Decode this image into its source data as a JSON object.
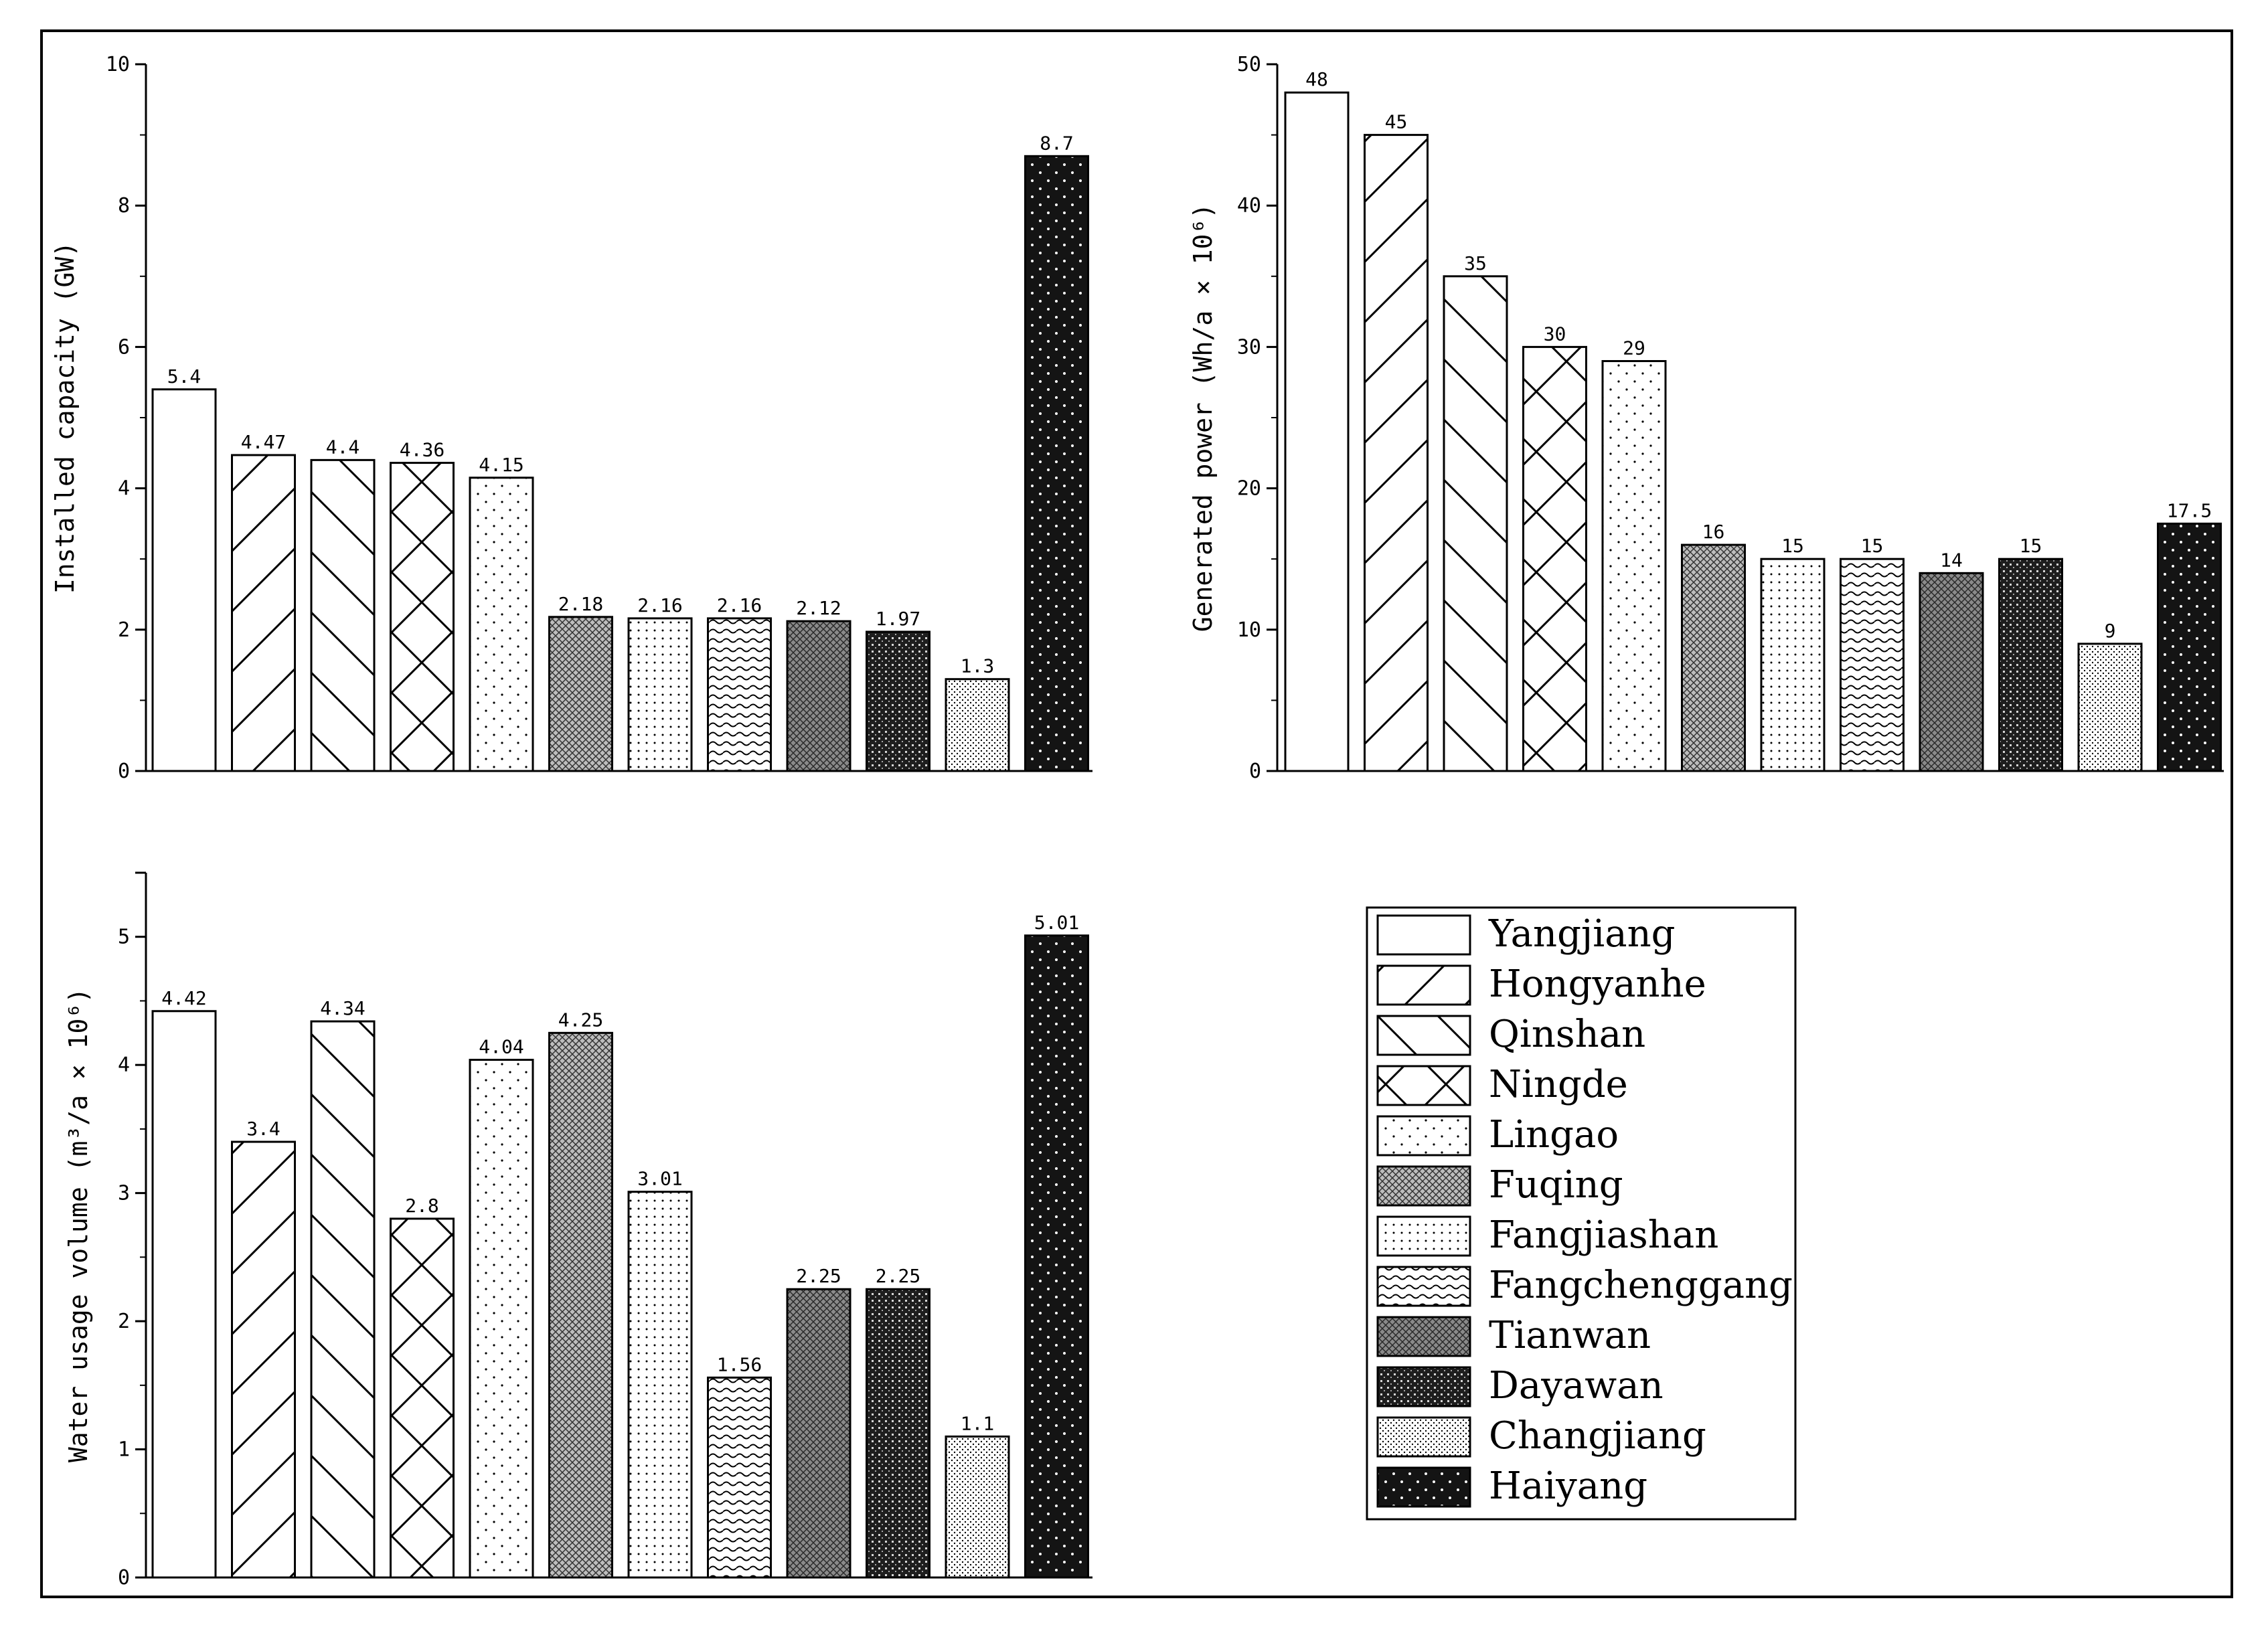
{
  "legend": {
    "items": [
      {
        "name": "Yangjiang",
        "pattern": "blank"
      },
      {
        "name": "Hongyanhe",
        "pattern": "fwd-diag"
      },
      {
        "name": "Qinshan",
        "pattern": "back-diag"
      },
      {
        "name": "Ningde",
        "pattern": "cross-diag"
      },
      {
        "name": "Lingao",
        "pattern": "sparse-dots"
      },
      {
        "name": "Fuqing",
        "pattern": "dense-cross"
      },
      {
        "name": "Fangjiashan",
        "pattern": "grid-dots"
      },
      {
        "name": "Fangchenggang",
        "pattern": "waves"
      },
      {
        "name": "Tianwan",
        "pattern": "gray-cross"
      },
      {
        "name": "Dayawan",
        "pattern": "dark-check"
      },
      {
        "name": "Changjiang",
        "pattern": "fine-dots"
      },
      {
        "name": "Haiyang",
        "pattern": "black-dots"
      }
    ]
  },
  "chart_data": [
    {
      "type": "bar",
      "ylabel": "Installed capacity (GW)",
      "ylim": [
        0,
        10
      ],
      "yticks": [
        "0",
        "2",
        "4",
        "6",
        "8",
        "10"
      ],
      "categories": [
        "Yangjiang",
        "Hongyanhe",
        "Qinshan",
        "Ningde",
        "Lingao",
        "Fuqing",
        "Fangjiashan",
        "Fangchenggang",
        "Tianwan",
        "Dayawan",
        "Changjiang",
        "Haiyang"
      ],
      "values": [
        5.4,
        4.47,
        4.4,
        4.36,
        4.15,
        2.18,
        2.16,
        2.16,
        2.12,
        1.97,
        1.3,
        8.7
      ],
      "labels": [
        "5.4",
        "4.47",
        "4.4",
        "4.36",
        "4.15",
        "2.18",
        "2.16",
        "2.16",
        "2.12",
        "1.97",
        "1.3",
        "8.7"
      ]
    },
    {
      "type": "bar",
      "ylabel": "Generated power (Wh/a × 10⁶)",
      "ylim": [
        0,
        50
      ],
      "yticks": [
        "0",
        "10",
        "20",
        "30",
        "40",
        "50"
      ],
      "categories": [
        "Yangjiang",
        "Hongyanhe",
        "Qinshan",
        "Ningde",
        "Lingao",
        "Fuqing",
        "Fangjiashan",
        "Fangchenggang",
        "Tianwan",
        "Dayawan",
        "Changjiang",
        "Haiyang"
      ],
      "values": [
        48,
        45,
        35,
        30,
        29,
        16,
        15,
        15,
        14,
        15,
        9,
        17.5
      ],
      "labels": [
        "48",
        "45",
        "35",
        "30",
        "29",
        "16",
        "15",
        "15",
        "14",
        "15",
        "9",
        "17.5"
      ]
    },
    {
      "type": "bar",
      "ylabel": "Water usage volume (m³/a × 10⁶)",
      "ylim": [
        0,
        5.5
      ],
      "yticks": [
        "0",
        "1",
        "2",
        "3",
        "4",
        "5"
      ],
      "categories": [
        "Yangjiang",
        "Hongyanhe",
        "Qinshan",
        "Ningde",
        "Lingao",
        "Fuqing",
        "Fangjiashan",
        "Fangchenggang",
        "Tianwan",
        "Dayawan",
        "Changjiang",
        "Haiyang"
      ],
      "values": [
        4.42,
        3.4,
        4.34,
        2.8,
        4.04,
        4.25,
        3.01,
        1.56,
        2.25,
        2.25,
        1.1,
        5.01
      ],
      "labels": [
        "4.42",
        "3.4",
        "4.34",
        "2.8",
        "4.04",
        "4.25",
        "3.01",
        "1.56",
        "2.25",
        "2.25",
        "1.1",
        "5.01"
      ]
    }
  ]
}
